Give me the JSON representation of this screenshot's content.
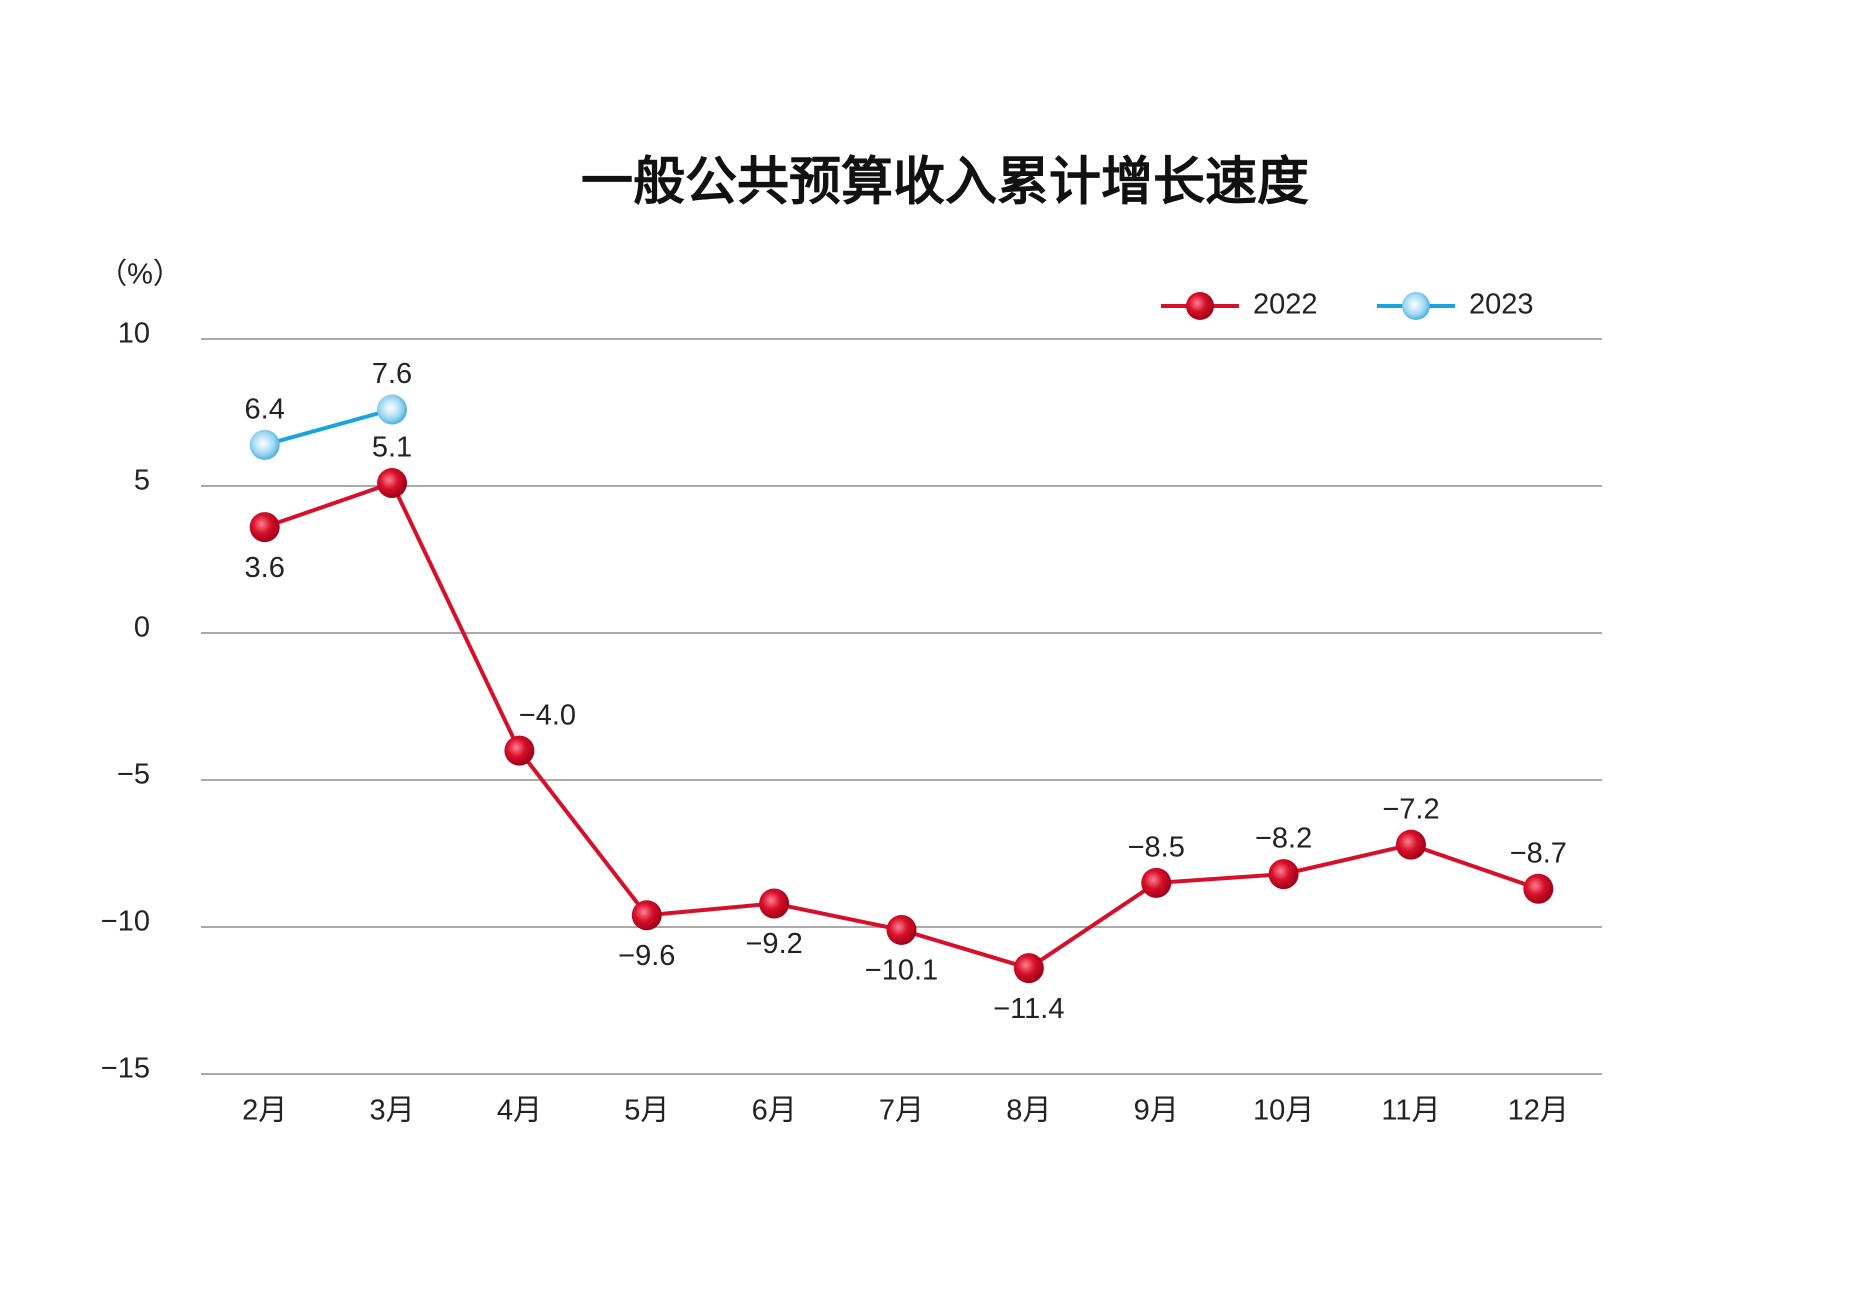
{
  "chart_data": {
    "type": "line",
    "title": "一般公共预算收入累计增长速度",
    "y_label": "（%）",
    "categories": [
      "2月",
      "3月",
      "4月",
      "5月",
      "6月",
      "7月",
      "8月",
      "9月",
      "10月",
      "11月",
      "12月"
    ],
    "series": [
      {
        "name": "2022",
        "color": "#d7102a",
        "values": [
          3.6,
          5.1,
          -4.0,
          -9.6,
          -9.2,
          -10.1,
          -11.4,
          -8.5,
          -8.2,
          -7.2,
          -8.7
        ],
        "value_labels": [
          "3.6",
          "5.1",
          "−4.0",
          "−9.6",
          "−9.2",
          "−10.1",
          "−11.4",
          "−8.5",
          "−8.2",
          "−7.2",
          "−8.7"
        ]
      },
      {
        "name": "2023",
        "color": "#1aa3dc",
        "values": [
          6.4,
          7.6,
          null,
          null,
          null,
          null,
          null,
          null,
          null,
          null,
          null
        ]
      }
    ],
    "ylim": [
      -15,
      10
    ],
    "yticks": [
      {
        "value": -15,
        "label": "−15"
      },
      {
        "value": -10,
        "label": "−10"
      },
      {
        "value": -5,
        "label": "−5"
      },
      0,
      5,
      10
    ],
    "grid": true,
    "legend": "top-right"
  }
}
